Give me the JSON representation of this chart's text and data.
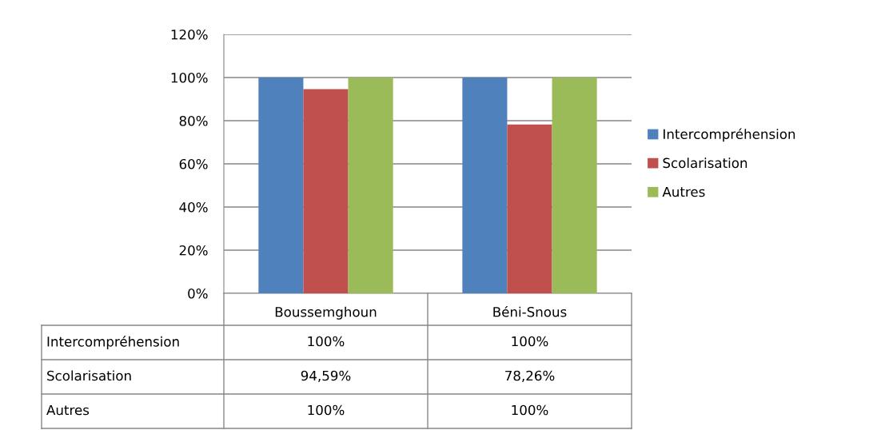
{
  "chart_data": {
    "type": "bar",
    "categories": [
      "Boussemghoun",
      "Béni-Snous"
    ],
    "series": [
      {
        "name": "Intercompréhension",
        "color": "#4f81bd",
        "values": [
          100,
          100
        ],
        "value_labels": [
          "100%",
          "100%"
        ]
      },
      {
        "name": "Scolarisation",
        "color": "#c0504d",
        "values": [
          94.59,
          78.26
        ],
        "value_labels": [
          "94,59%",
          "78,26%"
        ]
      },
      {
        "name": "Autres",
        "color": "#9bbb59",
        "values": [
          100,
          100
        ],
        "value_labels": [
          "100%",
          "100%"
        ]
      }
    ],
    "ylim": [
      0,
      120
    ],
    "yticks": [
      {
        "value": 0,
        "label": "0%"
      },
      {
        "value": 20,
        "label": "20%"
      },
      {
        "value": 40,
        "label": "40%"
      },
      {
        "value": 60,
        "label": "60%"
      },
      {
        "value": 80,
        "label": "80%"
      },
      {
        "value": 100,
        "label": "100%"
      },
      {
        "value": 120,
        "label": "120%"
      }
    ],
    "grid": "y",
    "legend": "right"
  }
}
